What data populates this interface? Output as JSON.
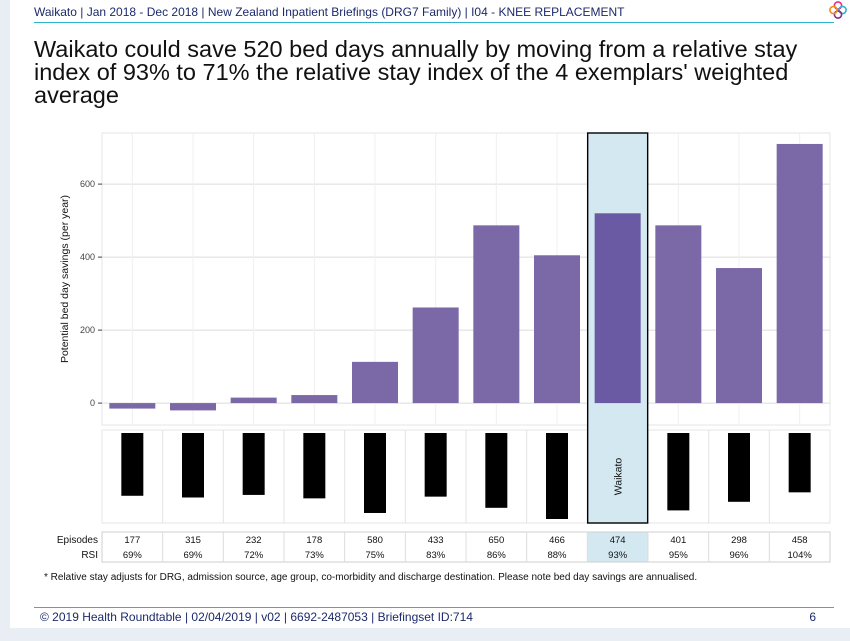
{
  "header": {
    "text": "Waikato | Jan 2018 - Dec 2018 |  New Zealand Inpatient Briefings (DRG7 Family) |  I04 - KNEE REPLACEMENT",
    "logo_icon": "roundtable-flower-logo",
    "colors": {
      "navy": "#1c2a6b",
      "teal": "#2fb3cf",
      "logo": [
        "#e8308a",
        "#2fb3cf",
        "#7b2f8e",
        "#f28c1b"
      ]
    }
  },
  "title": "Waikato could save 520 bed days annually by moving from a relative stay index of 93% to 71% the relative stay index of the 4 exemplars' weighted average",
  "chart_data": {
    "type": "bar",
    "ylabel": "Potential bed day savings (per year)",
    "ylim": [
      -60,
      740
    ],
    "yticks": [
      0,
      200,
      400,
      600
    ],
    "grid": true,
    "highlight_index": 8,
    "highlight_label": "Waikato",
    "colors": {
      "bar": "#7b68a6",
      "bar_highlight": "#6a5aa3",
      "highlight_fill": "#d3e8f1",
      "lower_bar": "#000000"
    },
    "values": [
      -15,
      -20,
      15,
      22,
      113,
      262,
      487,
      405,
      520,
      487,
      370,
      710
    ],
    "lower_panel_relative": [
      0.73,
      0.75,
      0.72,
      0.76,
      0.93,
      0.74,
      0.87,
      1.0,
      0.0,
      0.9,
      0.8,
      0.69
    ],
    "table": {
      "row_labels": [
        "Episodes",
        "RSI"
      ],
      "episodes": [
        "177",
        "315",
        "232",
        "178",
        "580",
        "433",
        "650",
        "466",
        "474",
        "401",
        "298",
        "458"
      ],
      "rsi": [
        "69%",
        "69%",
        "72%",
        "73%",
        "75%",
        "83%",
        "86%",
        "88%",
        "93%",
        "95%",
        "96%",
        "104%"
      ]
    }
  },
  "footnote": "* Relative stay adjusts for DRG, admission source, age group, co-morbidity and discharge destination. Please note bed day savings are annualised.",
  "footer": {
    "text": "© 2019  Health Roundtable | 02/04/2019 |  v02 |  6692-2487053 |  Briefingset ID:714",
    "page": "6"
  }
}
